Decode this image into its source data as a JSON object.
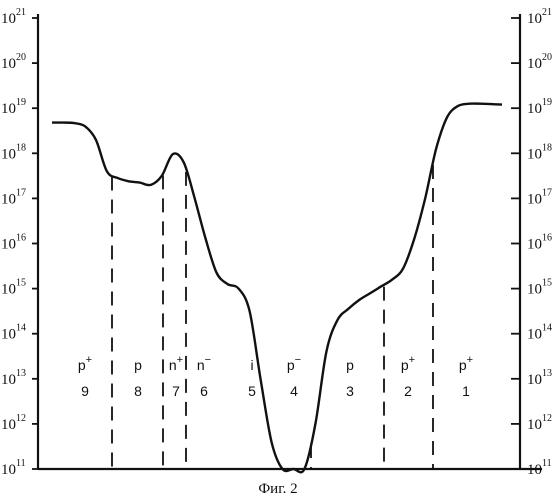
{
  "chart_data": {
    "type": "line",
    "title": "",
    "xlabel": "",
    "ylabel": "",
    "y_scale": "log",
    "ylim": [
      100000000000.0,
      1e+21
    ],
    "y_ticks": [
      {
        "base": "10",
        "exp": "11"
      },
      {
        "base": "10",
        "exp": "12"
      },
      {
        "base": "10",
        "exp": "13"
      },
      {
        "base": "10",
        "exp": "14"
      },
      {
        "base": "10",
        "exp": "15"
      },
      {
        "base": "10",
        "exp": "16"
      },
      {
        "base": "10",
        "exp": "17"
      },
      {
        "base": "10",
        "exp": "18"
      },
      {
        "base": "10",
        "exp": "19"
      },
      {
        "base": "10",
        "exp": "20"
      },
      {
        "base": "10",
        "exp": "21"
      }
    ],
    "regions": [
      {
        "type": "p",
        "sup": "+",
        "number": "9"
      },
      {
        "type": "p",
        "sup": "",
        "number": "8"
      },
      {
        "type": "n",
        "sup": "+",
        "number": "7"
      },
      {
        "type": "n",
        "sup": "−",
        "number": "6"
      },
      {
        "type": "i",
        "sup": "",
        "number": "5"
      },
      {
        "type": "p",
        "sup": "−",
        "number": "4"
      },
      {
        "type": "p",
        "sup": "",
        "number": "3"
      },
      {
        "type": "p",
        "sup": "+",
        "number": "2"
      },
      {
        "type": "p",
        "sup": "+",
        "number": "1"
      }
    ],
    "series": [
      {
        "values_log10": [
          18.68,
          18.68,
          18.67,
          18.6,
          18.3,
          17.6,
          17.45,
          17.38,
          17.35,
          17.3,
          17.5,
          17.98,
          17.8,
          17.0,
          16.1,
          15.35,
          15.1,
          15.0,
          14.5,
          13.0,
          11.6,
          11.0,
          11.0,
          11.0,
          12.0,
          13.6,
          14.3,
          14.55,
          14.75,
          14.9,
          15.05,
          15.2,
          15.45,
          16.1,
          17.0,
          18.1,
          18.8,
          19.05,
          19.1,
          19.1,
          19.09,
          19.08
        ]
      }
    ],
    "grid": false,
    "legend": "none"
  },
  "caption": "Фиг. 2"
}
